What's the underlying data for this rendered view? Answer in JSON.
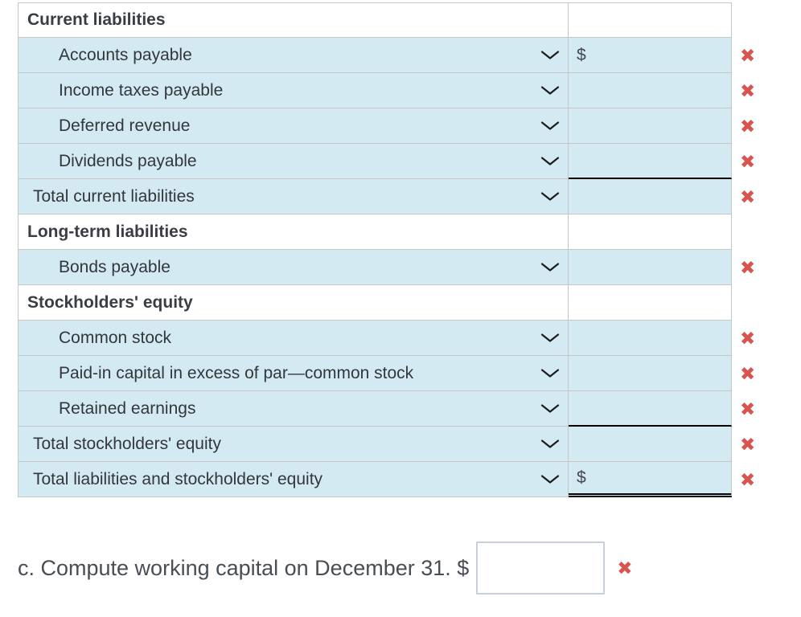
{
  "colors": {
    "row_blue": "#d3eaf2",
    "error_red": "#d9534f",
    "underline_black": "#000000",
    "border_gray": "#c6c6c6"
  },
  "icons": {
    "dropdown": "chevron-down",
    "error_glyph": "✖"
  },
  "table": {
    "rows": [
      {
        "type": "section",
        "label": "Current liabilities"
      },
      {
        "type": "item",
        "label": "Accounts payable",
        "prefix": "$",
        "value": ""
      },
      {
        "type": "item",
        "label": "Income taxes payable",
        "value": ""
      },
      {
        "type": "item",
        "label": "Deferred revenue",
        "value": ""
      },
      {
        "type": "item",
        "label": "Dividends payable",
        "value": "",
        "underline": "single"
      },
      {
        "type": "total",
        "label": "Total current liabilities",
        "value": ""
      },
      {
        "type": "section",
        "label": "Long-term liabilities"
      },
      {
        "type": "item",
        "label": "Bonds payable",
        "value": ""
      },
      {
        "type": "section",
        "label": "Stockholders' equity"
      },
      {
        "type": "item",
        "label": "Common stock",
        "value": ""
      },
      {
        "type": "item",
        "label": "Paid-in capital in excess of par—common stock",
        "value": ""
      },
      {
        "type": "item",
        "label": "Retained earnings",
        "value": "",
        "underline": "single"
      },
      {
        "type": "total",
        "label": "Total stockholders' equity",
        "value": ""
      },
      {
        "type": "total",
        "label": "Total liabilities and stockholders' equity",
        "prefix": "$",
        "value": "",
        "underline": "double"
      }
    ]
  },
  "question": {
    "text": "c. Compute working capital on December 31. $",
    "input_value": ""
  }
}
